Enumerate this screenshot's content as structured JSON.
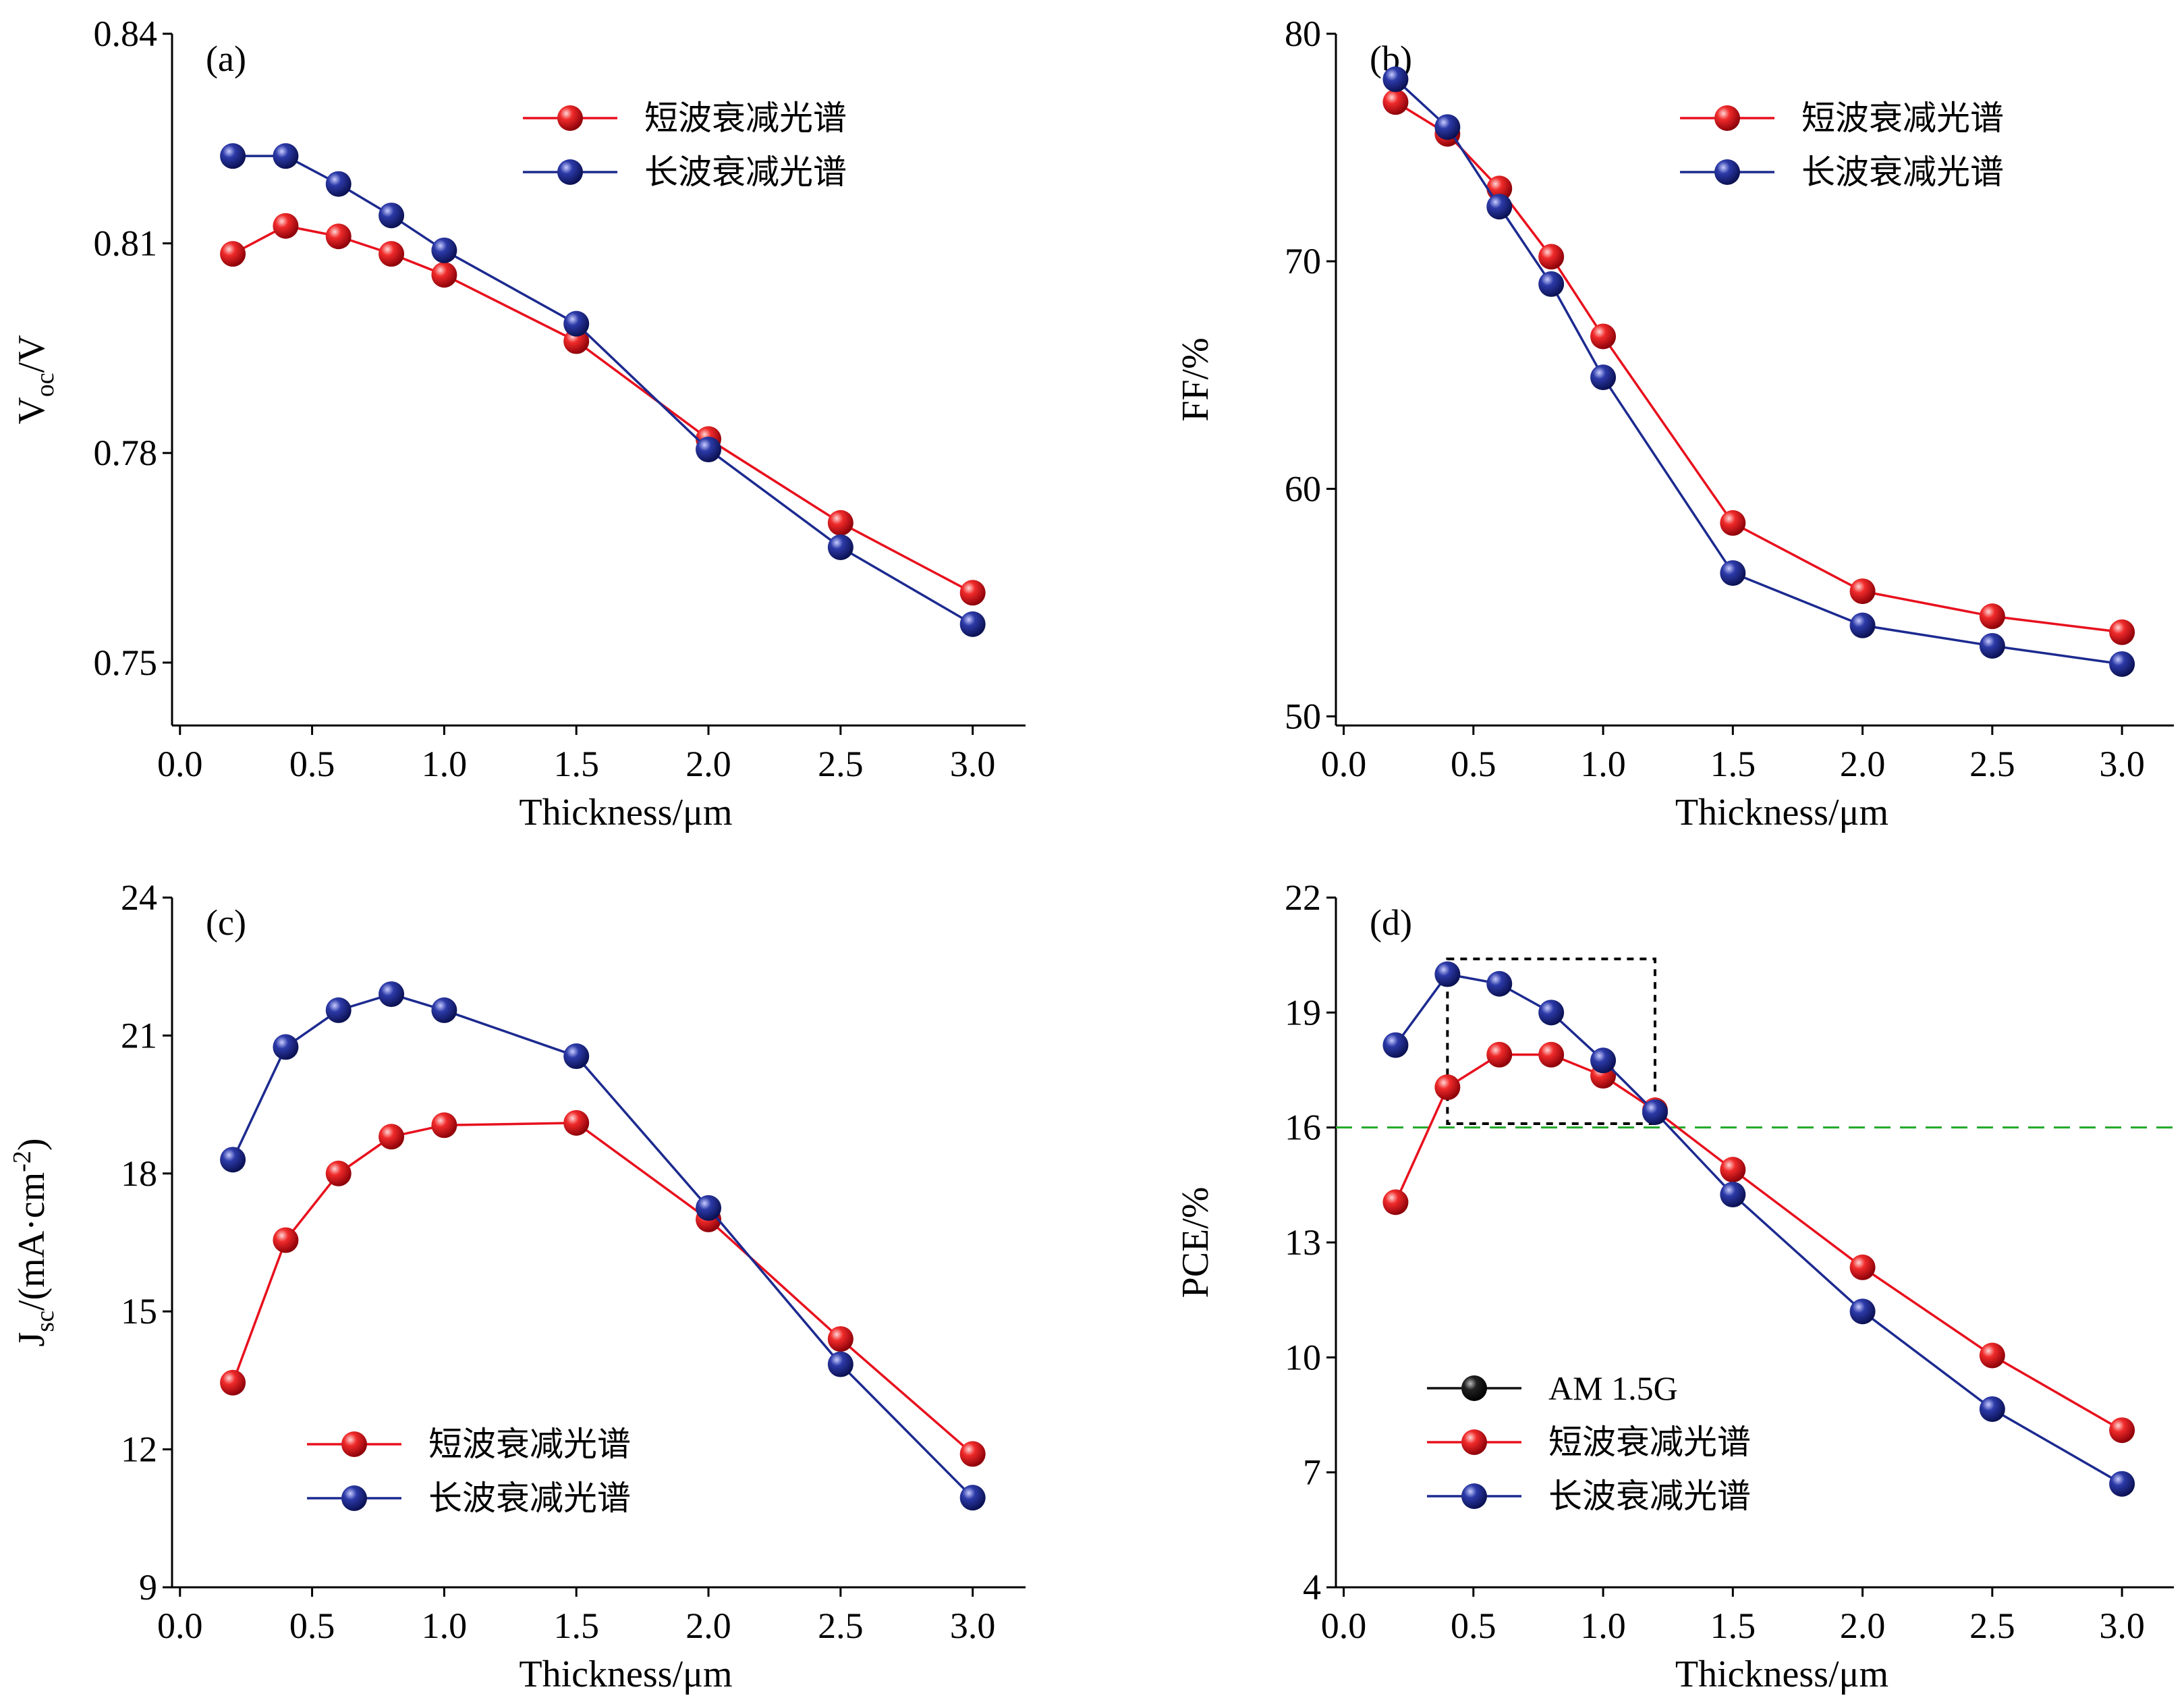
{
  "colors": {
    "short": "#e8101d",
    "long": "#1c2a8f",
    "am": "#111111",
    "reference": "#22a82a"
  },
  "chart_data": [
    {
      "id": "a",
      "type": "line",
      "panel_label": "(a)",
      "xlabel": "Thickness/μm",
      "ylabel_main": "V",
      "ylabel_sub": "oc",
      "ylabel_tail": "/V",
      "xlim": [
        -0.03,
        3.2
      ],
      "ylim": [
        0.741,
        0.84
      ],
      "xticks": [
        "0.0",
        "0.5",
        "1.0",
        "1.5",
        "2.0",
        "2.5",
        "3.0"
      ],
      "yticks": [
        "0.75",
        "0.78",
        "0.81",
        "0.84"
      ],
      "legend_position": "top-right",
      "series": [
        {
          "name": "短波衰减光谱",
          "color_key": "short",
          "x": [
            0.2,
            0.4,
            0.6,
            0.8,
            1.0,
            1.5,
            2.0,
            2.5,
            3.0
          ],
          "y": [
            0.8085,
            0.8125,
            0.811,
            0.8085,
            0.8055,
            0.796,
            0.782,
            0.77,
            0.76
          ]
        },
        {
          "name": "长波衰减光谱",
          "color_key": "long",
          "x": [
            0.2,
            0.4,
            0.6,
            0.8,
            1.0,
            1.5,
            2.0,
            2.5,
            3.0
          ],
          "y": [
            0.8225,
            0.8225,
            0.8185,
            0.814,
            0.809,
            0.7985,
            0.7805,
            0.7665,
            0.7555
          ]
        }
      ]
    },
    {
      "id": "b",
      "type": "line",
      "panel_label": "(b)",
      "xlabel": "Thickness/μm",
      "ylabel_main": "FF/%",
      "ylabel_sub": "",
      "ylabel_tail": "",
      "xlim": [
        -0.03,
        3.2
      ],
      "ylim": [
        49.6,
        80
      ],
      "xticks": [
        "0.0",
        "0.5",
        "1.0",
        "1.5",
        "2.0",
        "2.5",
        "3.0"
      ],
      "yticks": [
        "50",
        "60",
        "70",
        "80"
      ],
      "legend_position": "top-right",
      "series": [
        {
          "name": "短波衰减光谱",
          "color_key": "short",
          "x": [
            0.2,
            0.4,
            0.6,
            0.8,
            1.0,
            1.5,
            2.0,
            2.5,
            3.0
          ],
          "y": [
            77.0,
            75.6,
            73.2,
            70.2,
            66.7,
            58.5,
            55.5,
            54.4,
            53.7
          ]
        },
        {
          "name": "长波衰减光谱",
          "color_key": "long",
          "x": [
            0.2,
            0.4,
            0.6,
            0.8,
            1.0,
            1.5,
            2.0,
            2.5,
            3.0
          ],
          "y": [
            78.0,
            75.9,
            72.4,
            69.0,
            64.9,
            56.3,
            54.0,
            53.1,
            52.3
          ]
        }
      ]
    },
    {
      "id": "c",
      "type": "line",
      "panel_label": "(c)",
      "xlabel": "Thickness/μm",
      "ylabel_main": "J",
      "ylabel_sub": "sc",
      "ylabel_tail": "/(mA·cm",
      "ylabel_sup": "-2",
      "ylabel_end": ")",
      "xlim": [
        -0.03,
        3.2
      ],
      "ylim": [
        9,
        24
      ],
      "xticks": [
        "0.0",
        "0.5",
        "1.0",
        "1.5",
        "2.0",
        "2.5",
        "3.0"
      ],
      "yticks": [
        "9",
        "12",
        "15",
        "18",
        "21",
        "24"
      ],
      "legend_position": "bottom-center",
      "series": [
        {
          "name": "短波衰减光谱",
          "color_key": "short",
          "x": [
            0.2,
            0.4,
            0.6,
            0.8,
            1.0,
            1.5,
            2.0,
            2.5,
            3.0
          ],
          "y": [
            13.45,
            16.55,
            18.0,
            18.8,
            19.05,
            19.1,
            17.0,
            14.4,
            11.9
          ]
        },
        {
          "name": "长波衰减光谱",
          "color_key": "long",
          "x": [
            0.2,
            0.4,
            0.6,
            0.8,
            1.0,
            1.5,
            2.0,
            2.5,
            3.0
          ],
          "y": [
            18.3,
            20.75,
            21.55,
            21.9,
            21.55,
            20.55,
            17.25,
            13.85,
            10.95
          ]
        }
      ]
    },
    {
      "id": "d",
      "type": "line",
      "panel_label": "(d)",
      "xlabel": "Thickness/μm",
      "ylabel_main": "PCE/%",
      "ylabel_sub": "",
      "ylabel_tail": "",
      "xlim": [
        -0.03,
        3.2
      ],
      "ylim": [
        4,
        22
      ],
      "xticks": [
        "0.0",
        "0.5",
        "1.0",
        "1.5",
        "2.0",
        "2.5",
        "3.0"
      ],
      "yticks": [
        "4",
        "7",
        "10",
        "13",
        "16",
        "19",
        "22"
      ],
      "legend_position": "bottom-left",
      "reference_line_y": 16,
      "highlight_box": {
        "x": [
          0.4,
          1.2
        ],
        "y": [
          16.1,
          20.4
        ]
      },
      "legend_extra": "AM 1.5G",
      "series": [
        {
          "name": "短波衰减光谱",
          "color_key": "short",
          "x": [
            0.2,
            0.4,
            0.6,
            0.8,
            1.0,
            1.2,
            1.5,
            2.0,
            2.5,
            3.0
          ],
          "y": [
            14.05,
            17.05,
            17.9,
            17.9,
            17.35,
            16.45,
            14.9,
            12.35,
            10.05,
            8.1
          ]
        },
        {
          "name": "长波衰减光谱",
          "color_key": "long",
          "x": [
            0.2,
            0.4,
            0.6,
            0.8,
            1.0,
            1.2,
            1.5,
            2.0,
            2.5,
            3.0
          ],
          "y": [
            18.15,
            20.0,
            19.75,
            19.0,
            17.75,
            16.4,
            14.25,
            11.2,
            8.65,
            6.7
          ]
        }
      ]
    }
  ]
}
